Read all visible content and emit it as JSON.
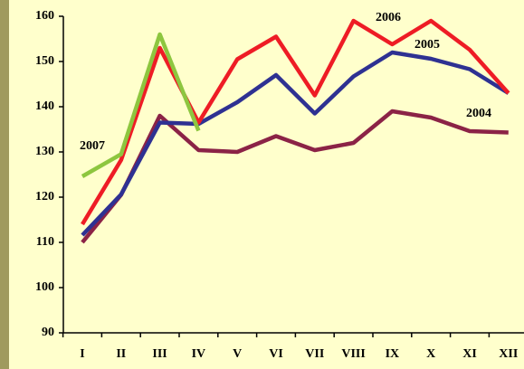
{
  "chart_data": {
    "type": "line",
    "categories": [
      "I",
      "II",
      "III",
      "IV",
      "V",
      "VI",
      "VII",
      "VIII",
      "IX",
      "X",
      "XI",
      "XII"
    ],
    "series": [
      {
        "name": "2004",
        "color": "#8b2346",
        "values": [
          110,
          120.5,
          138,
          130.4,
          130,
          133.5,
          130.4,
          132,
          139,
          137.6,
          134.6,
          134.3
        ]
      },
      {
        "name": "2005",
        "color": "#2e3192",
        "values": [
          111.6,
          120.6,
          136.5,
          136.2,
          141,
          147,
          138.5,
          146.7,
          152,
          150.6,
          148.3,
          143
        ]
      },
      {
        "name": "2006",
        "color": "#ee1c25",
        "values": [
          114,
          128.2,
          153,
          136.5,
          150.5,
          155.5,
          142.5,
          159,
          153.8,
          159,
          152.6,
          143
        ]
      },
      {
        "name": "2007",
        "color": "#8dc63f",
        "values": [
          124.6,
          129.5,
          156,
          134.7,
          null,
          null,
          null,
          null,
          null,
          null,
          null,
          null
        ]
      }
    ],
    "ylim": [
      90,
      160
    ],
    "yticks": [
      90,
      100,
      110,
      120,
      130,
      140,
      150,
      160
    ]
  }
}
